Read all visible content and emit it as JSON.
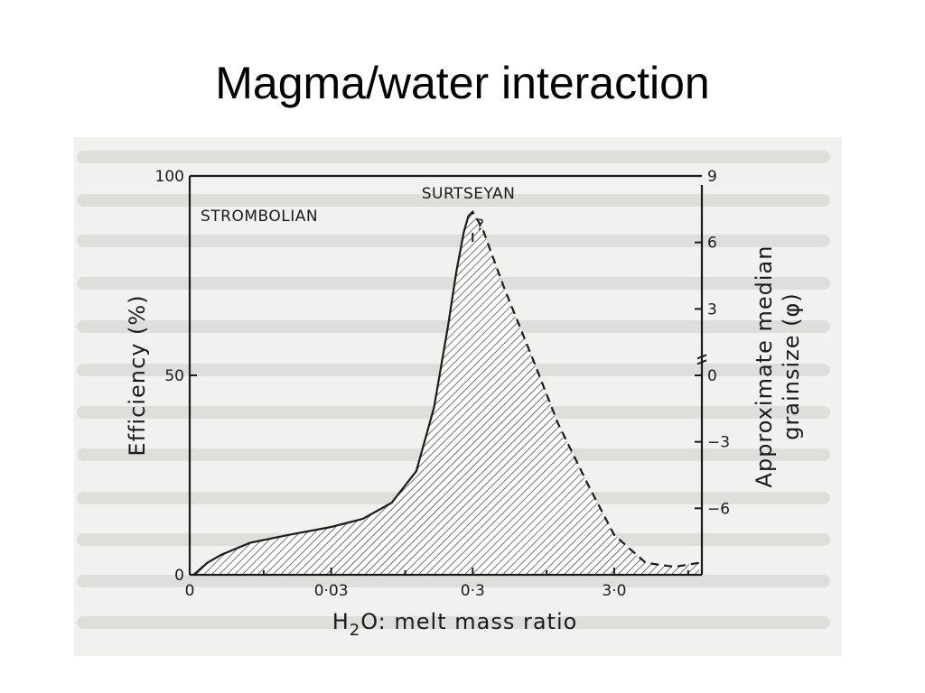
{
  "slide": {
    "title": "Magma/water interaction"
  },
  "chart_data": {
    "type": "area",
    "title": "",
    "xlabel": "H₂O: melt mass ratio",
    "xlabel_parts": {
      "prefix": "H",
      "subscript": "2",
      "suffix": "O: melt mass ratio"
    },
    "ylabel": "Efficiency (%)",
    "y2label_line1": "Approximate median",
    "y2label_line2": "grainsize (φ)",
    "x_scale": "log",
    "x_tick_labels": [
      "0",
      "0·03",
      "0·3",
      "3·0"
    ],
    "x_tick_values": [
      0.003,
      0.03,
      0.3,
      3.0
    ],
    "ylim": [
      0,
      100
    ],
    "y_tick_labels": [
      "0",
      "50",
      "100"
    ],
    "y2_tick_labels": [
      "9",
      "6",
      "3",
      "0",
      "−3",
      "−6"
    ],
    "y2_tick_values": [
      9,
      6,
      3,
      0,
      -3,
      -6
    ],
    "region_labels": [
      "STROMBOLIAN",
      "SURTSEYAN"
    ],
    "peak_marker": "?",
    "fill": "hatched",
    "series": [
      {
        "style": "solid",
        "x": [
          0.0032,
          0.004,
          0.005,
          0.008,
          0.015,
          0.03,
          0.05,
          0.08,
          0.12,
          0.16,
          0.2,
          0.23,
          0.26,
          0.28
        ],
        "y": [
          0,
          3,
          5,
          8,
          10,
          12,
          14,
          18,
          26,
          42,
          62,
          76,
          86,
          90
        ]
      },
      {
        "style": "dashed",
        "x": [
          0.28,
          0.3,
          0.35,
          0.5,
          0.8,
          1.2,
          2.0,
          3.0,
          5.0,
          8.0,
          12.0
        ],
        "y": [
          90,
          91,
          87,
          72,
          54,
          38,
          22,
          10,
          3,
          2,
          3
        ]
      }
    ]
  }
}
